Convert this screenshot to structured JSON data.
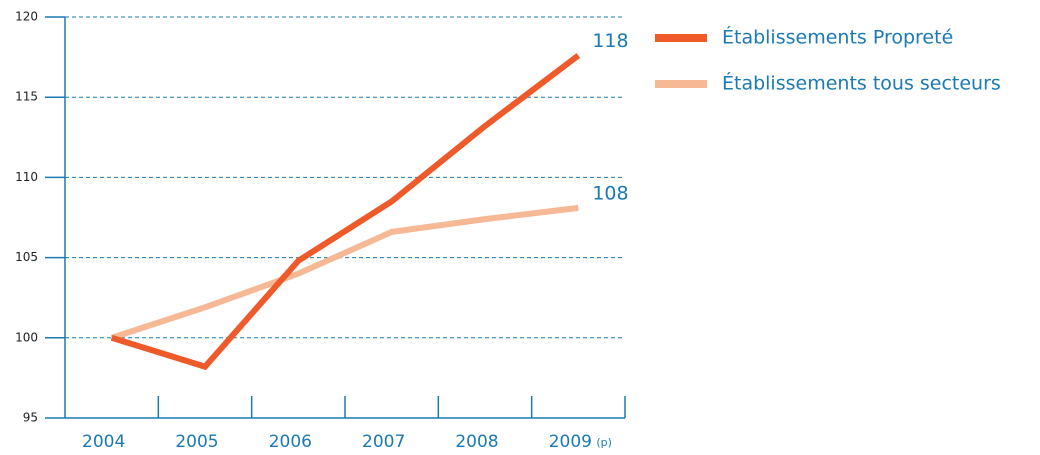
{
  "chart_data": {
    "type": "line",
    "categories": [
      "2004",
      "2005",
      "2006",
      "2007",
      "2008",
      "2009"
    ],
    "annotation": "(p)",
    "series": [
      {
        "name": "Établissements Propreté",
        "color": "#ee5a2a",
        "values": [
          100,
          98.2,
          104.8,
          108.5,
          113.2,
          117.6
        ],
        "value_labels": [
          null,
          null,
          null,
          null,
          null,
          "118"
        ]
      },
      {
        "name": "Établissements tous secteurs",
        "color": "#f7b896",
        "values": [
          100,
          101.9,
          104.0,
          106.6,
          107.4,
          108.1
        ],
        "value_labels": [
          null,
          null,
          null,
          null,
          null,
          "108"
        ]
      }
    ],
    "ylim": [
      95,
      120
    ],
    "yticks": [
      95,
      100,
      105,
      110,
      115,
      120
    ],
    "grid": true,
    "axis_color": "#1a7ab5"
  }
}
